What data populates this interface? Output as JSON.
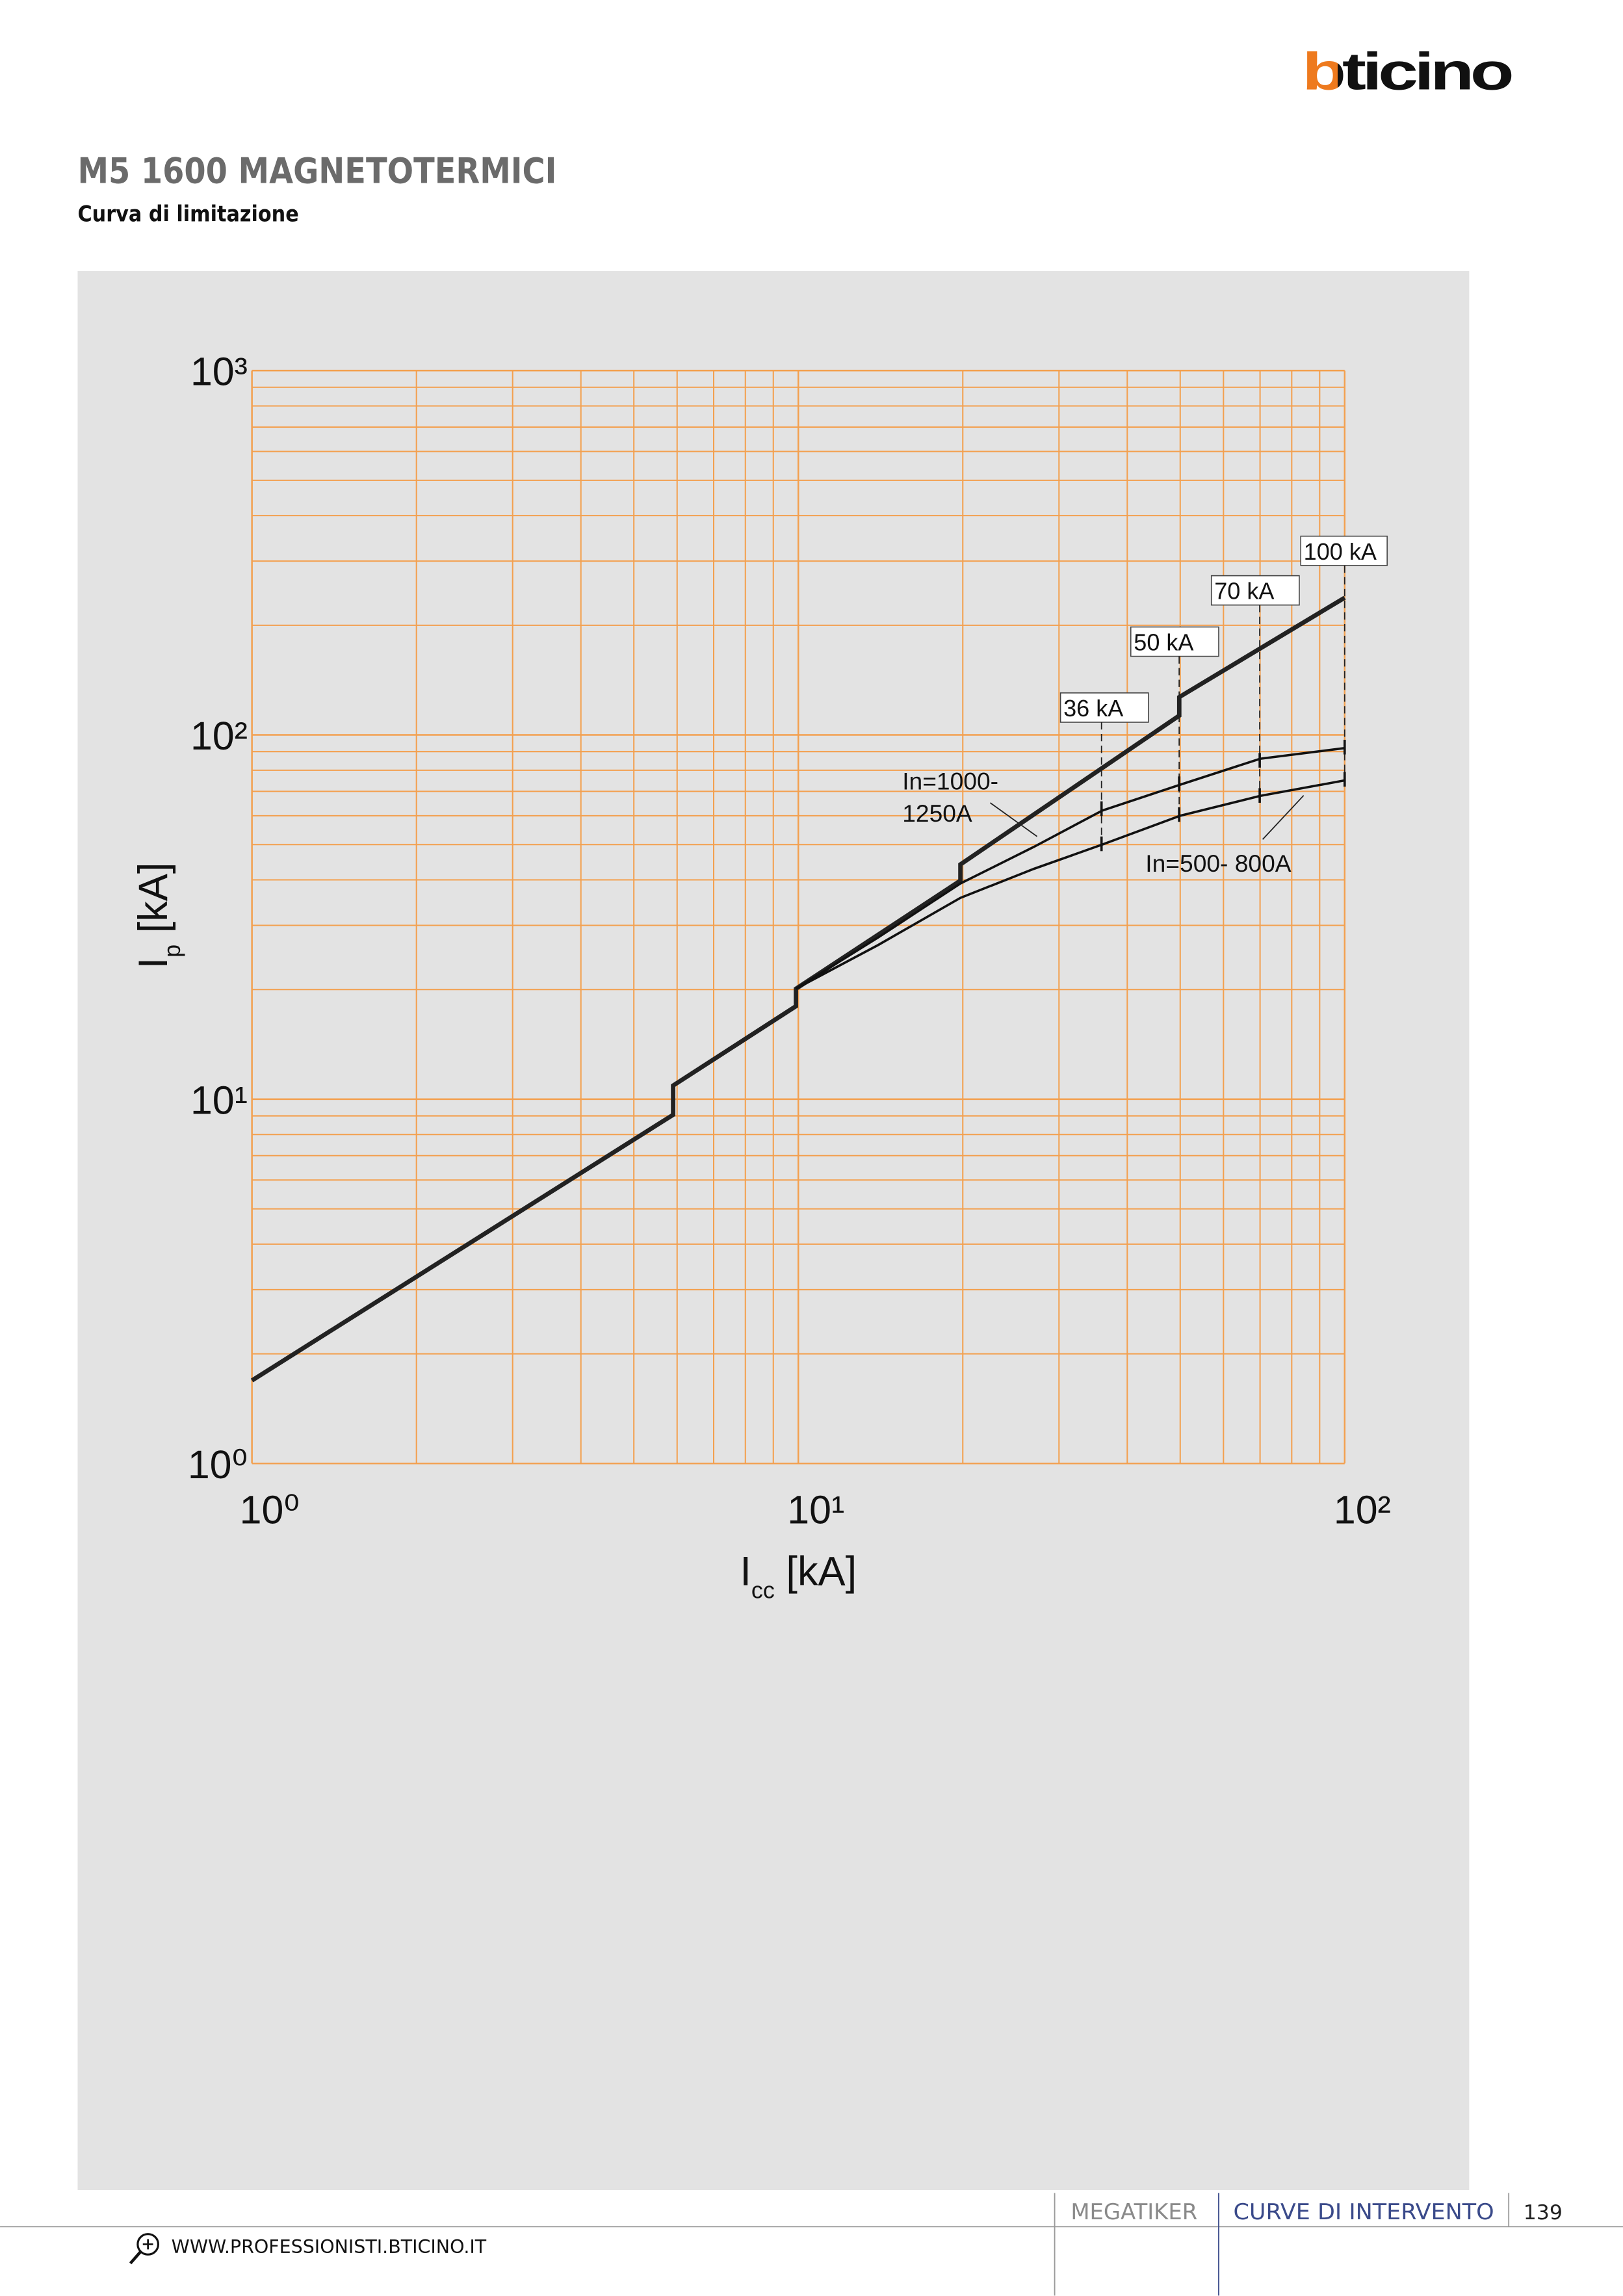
{
  "header": {
    "logo": "bticino",
    "title": "M5 1600 MAGNETOTERMICI",
    "subtitle": "Curva di limitazione"
  },
  "chart_data": {
    "type": "line",
    "xlabel": [
      "I",
      "cc",
      " [kA]"
    ],
    "ylabel": [
      "I",
      "p",
      " [kA]"
    ],
    "xscale": "log",
    "yscale": "log",
    "grid": true,
    "grid_color": "#f3a04f",
    "xlim": [
      1,
      100
    ],
    "ylim": [
      1,
      1000
    ],
    "xticks": [
      {
        "value": 1,
        "label": "10⁰"
      },
      {
        "value": 10,
        "label": "10¹"
      },
      {
        "value": 100,
        "label": "10²"
      }
    ],
    "yticks": [
      {
        "value": 1,
        "label": "10⁰"
      },
      {
        "value": 10,
        "label": "10¹"
      },
      {
        "value": 100,
        "label": "10²"
      },
      {
        "value": 1000,
        "label": "10³"
      }
    ],
    "series": [
      {
        "color": "#222222",
        "x": [
          1,
          5.9,
          5.9,
          9.9,
          9.9,
          19.8,
          19.8,
          49.8,
          49.8,
          100
        ],
        "values": [
          1.69,
          9.06,
          10.9,
          18,
          20.1,
          39.8,
          44.1,
          113,
          127,
          238
        ]
      },
      {
        "color": "#111111",
        "x": [
          9.9,
          14,
          19.8,
          27,
          36,
          50,
          70,
          100
        ],
        "values": [
          20.1,
          27.8,
          39.1,
          49.3,
          62,
          73,
          86,
          92
        ]
      },
      {
        "color": "#111111",
        "x": [
          9.9,
          14,
          19.8,
          27,
          36,
          50,
          70,
          100
        ],
        "values": [
          20.1,
          26.5,
          35.7,
          42.9,
          50,
          60,
          68,
          75
        ]
      }
    ],
    "annotations": [
      "100 kA",
      "70 kA",
      "50 kA",
      "36 kA",
      "In=1000-",
      "1250A",
      "In=500- 800A"
    ]
  },
  "footer": {
    "section": "MEGATIKER",
    "chapter": "CURVE DI INTERVENTO",
    "page": "139",
    "website": "WWW.PROFESSIONISTI.BTICINO.IT"
  }
}
